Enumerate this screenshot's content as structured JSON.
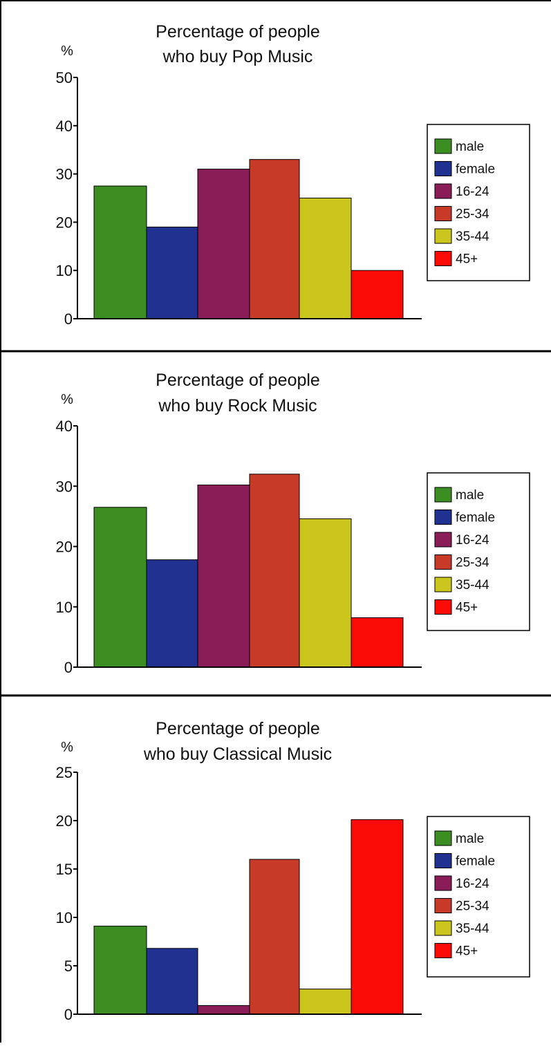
{
  "page": {
    "background": "#ffffff"
  },
  "chart_data": [
    {
      "type": "bar",
      "title": [
        "Percentage of people",
        "who buy Pop Music"
      ],
      "unit_label": "%",
      "categories": [
        "male",
        "female",
        "16-24",
        "25-34",
        "35-44",
        "45+"
      ],
      "values": [
        27.5,
        19,
        31,
        33,
        25,
        10
      ],
      "colors": [
        "#3d8e22",
        "#21318f",
        "#8a1c57",
        "#c63a27",
        "#cac61d",
        "#fb0b05"
      ],
      "ylim": [
        0,
        50
      ],
      "yticks": [
        0,
        10,
        20,
        30,
        40,
        50
      ],
      "grid": false,
      "legend": {
        "placement": "right",
        "entries": [
          "male",
          "female",
          "16-24",
          "25-34",
          "35-44",
          "45+"
        ]
      }
    },
    {
      "type": "bar",
      "title": [
        "Percentage of people",
        "who buy Rock Music"
      ],
      "unit_label": "%",
      "categories": [
        "male",
        "female",
        "16-24",
        "25-34",
        "35-44",
        "45+"
      ],
      "values": [
        26.5,
        17.8,
        30.2,
        32,
        24.6,
        8.2
      ],
      "colors": [
        "#3d8e22",
        "#21318f",
        "#8a1c57",
        "#c63a27",
        "#cac61d",
        "#fb0b05"
      ],
      "ylim": [
        0,
        40
      ],
      "yticks": [
        0,
        10,
        20,
        30,
        40
      ],
      "grid": false,
      "legend": {
        "placement": "right",
        "entries": [
          "male",
          "female",
          "16-24",
          "25-34",
          "35-44",
          "45+"
        ]
      }
    },
    {
      "type": "bar",
      "title": [
        "Percentage of people",
        "who buy Classical Music"
      ],
      "unit_label": "%",
      "categories": [
        "male",
        "female",
        "16-24",
        "25-34",
        "35-44",
        "45+"
      ],
      "values": [
        9.1,
        6.8,
        0.9,
        16,
        2.6,
        20.1
      ],
      "colors": [
        "#3d8e22",
        "#21318f",
        "#8a1c57",
        "#c63a27",
        "#cac61d",
        "#fb0b05"
      ],
      "ylim": [
        0,
        25
      ],
      "yticks": [
        0,
        5,
        10,
        15,
        20,
        25
      ],
      "grid": false,
      "legend": {
        "placement": "right",
        "entries": [
          "male",
          "female",
          "16-24",
          "25-34",
          "35-44",
          "45+"
        ]
      }
    }
  ]
}
